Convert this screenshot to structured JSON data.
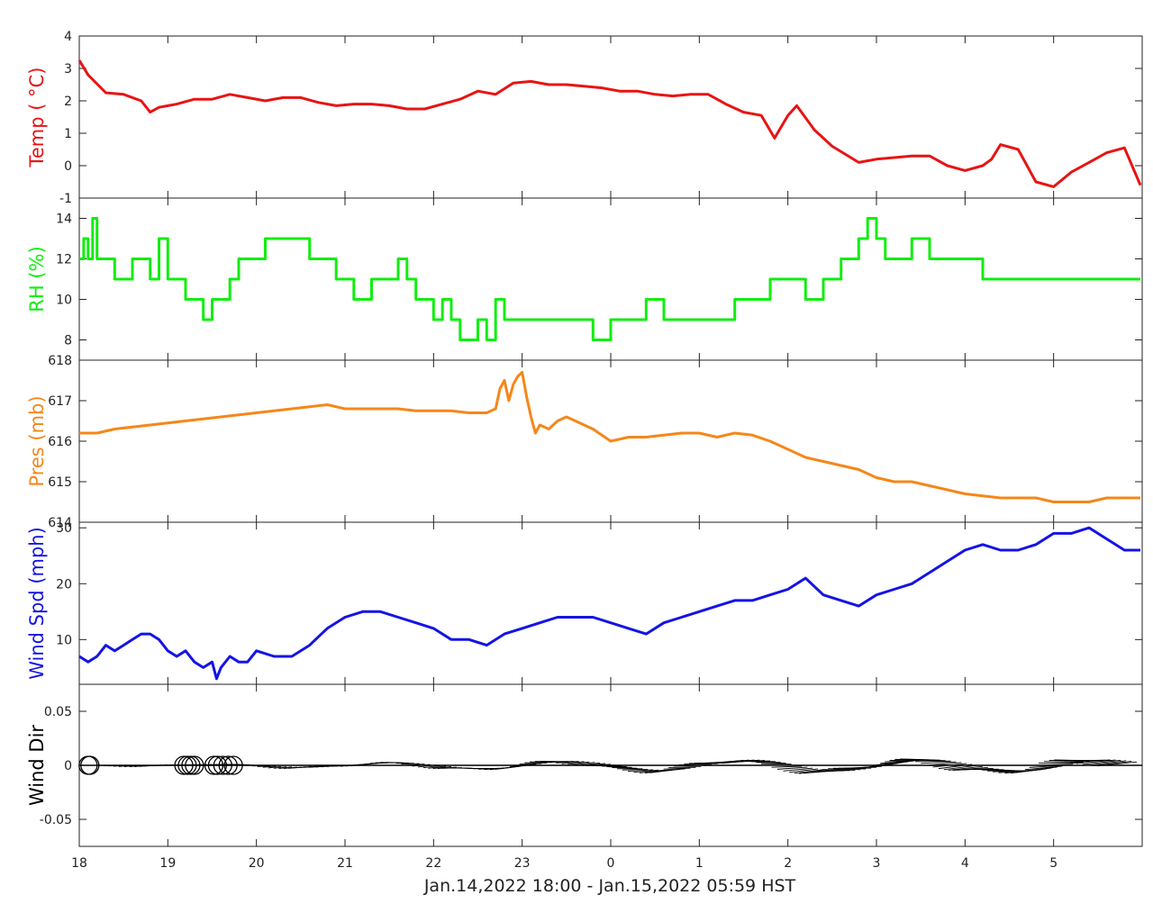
{
  "figure": {
    "xlabel": "Jan.14,2022 18:00 - Jan.15,2022 05:59 HST",
    "x_ticks": [
      "18",
      "19",
      "20",
      "21",
      "22",
      "23",
      "0",
      "1",
      "2",
      "3",
      "4",
      "5"
    ]
  },
  "chart_data": [
    {
      "type": "line",
      "ylabel": "Temp ( °C)",
      "color": "#e81414",
      "ylim": [
        -1,
        4
      ],
      "y_ticks": [
        "4",
        "3",
        "2",
        "1",
        "0",
        "-1"
      ],
      "x": [
        0,
        0.1,
        0.3,
        0.5,
        0.7,
        0.8,
        0.9,
        1.1,
        1.3,
        1.5,
        1.7,
        1.9,
        2.1,
        2.3,
        2.5,
        2.7,
        2.9,
        3.1,
        3.3,
        3.5,
        3.7,
        3.9,
        4.1,
        4.3,
        4.5,
        4.7,
        4.9,
        5.1,
        5.3,
        5.5,
        5.7,
        5.9,
        6.1,
        6.3,
        6.5,
        6.7,
        6.9,
        7.1,
        7.3,
        7.5,
        7.7,
        7.85,
        8.0,
        8.1,
        8.3,
        8.5,
        8.8,
        9.0,
        9.2,
        9.4,
        9.6,
        9.8,
        10.0,
        10.2,
        10.3,
        10.4,
        10.6,
        10.8,
        11.0,
        11.2,
        11.4,
        11.6,
        11.8,
        11.98
      ],
      "y": [
        3.25,
        2.8,
        2.25,
        2.2,
        2.0,
        1.65,
        1.8,
        1.9,
        2.05,
        2.05,
        2.2,
        2.1,
        2.0,
        2.1,
        2.1,
        1.95,
        1.85,
        1.9,
        1.9,
        1.85,
        1.75,
        1.75,
        1.9,
        2.05,
        2.3,
        2.2,
        2.55,
        2.6,
        2.5,
        2.5,
        2.45,
        2.4,
        2.3,
        2.3,
        2.2,
        2.15,
        2.2,
        2.2,
        1.9,
        1.65,
        1.55,
        0.85,
        1.55,
        1.85,
        1.1,
        0.6,
        0.1,
        0.2,
        0.25,
        0.3,
        0.3,
        0.0,
        -0.15,
        0.0,
        0.2,
        0.65,
        0.5,
        -0.5,
        -0.65,
        -0.2,
        0.1,
        0.4,
        0.55,
        -0.6
      ]
    },
    {
      "type": "line",
      "step": true,
      "ylabel": "RH (%)",
      "color": "#10ee10",
      "ylim": [
        7,
        15
      ],
      "y_ticks": [
        "14",
        "12",
        "10",
        "8"
      ],
      "x": [
        0,
        0.05,
        0.1,
        0.15,
        0.2,
        0.3,
        0.4,
        0.5,
        0.6,
        0.7,
        0.8,
        0.9,
        1.0,
        1.1,
        1.2,
        1.3,
        1.4,
        1.5,
        1.6,
        1.7,
        1.8,
        1.9,
        2.0,
        2.1,
        2.2,
        2.3,
        2.4,
        2.5,
        2.6,
        2.7,
        2.8,
        2.9,
        3.0,
        3.1,
        3.2,
        3.3,
        3.4,
        3.5,
        3.6,
        3.7,
        3.8,
        3.9,
        4.0,
        4.1,
        4.2,
        4.3,
        4.4,
        4.5,
        4.6,
        4.7,
        4.8,
        4.9,
        5.0,
        5.2,
        5.4,
        5.6,
        5.8,
        6.0,
        6.2,
        6.4,
        6.6,
        6.8,
        7.0,
        7.2,
        7.4,
        7.6,
        7.8,
        8.0,
        8.2,
        8.4,
        8.6,
        8.8,
        8.9,
        9.0,
        9.1,
        9.2,
        9.4,
        9.6,
        9.8,
        10.0,
        10.2,
        10.4,
        10.6,
        10.8,
        11.0,
        11.2,
        11.4,
        11.6,
        11.8,
        11.98
      ],
      "y": [
        12,
        13,
        12,
        14,
        12,
        12,
        11,
        11,
        12,
        12,
        11,
        13,
        11,
        11,
        10,
        10,
        9,
        10,
        10,
        11,
        12,
        12,
        12,
        13,
        13,
        13,
        13,
        13,
        12,
        12,
        12,
        11,
        11,
        10,
        10,
        11,
        11,
        11,
        12,
        11,
        10,
        10,
        9,
        10,
        9,
        8,
        8,
        9,
        8,
        10,
        9,
        9,
        9,
        9,
        9,
        9,
        8,
        9,
        9,
        10,
        9,
        9,
        9,
        9,
        10,
        10,
        11,
        11,
        10,
        11,
        12,
        13,
        14,
        13,
        12,
        12,
        13,
        12,
        12,
        12,
        11,
        11,
        11,
        11,
        11,
        11,
        11,
        11,
        11,
        11
      ]
    },
    {
      "type": "line",
      "ylabel": "Pres (mb)",
      "color": "#f5871a",
      "ylim": [
        614,
        618
      ],
      "y_ticks": [
        "618",
        "617",
        "616",
        "615",
        "614"
      ],
      "x": [
        0,
        0.2,
        0.4,
        0.6,
        0.8,
        1.0,
        1.2,
        1.4,
        1.6,
        1.8,
        2.0,
        2.2,
        2.4,
        2.6,
        2.8,
        3.0,
        3.2,
        3.4,
        3.6,
        3.8,
        4.0,
        4.2,
        4.4,
        4.6,
        4.7,
        4.75,
        4.8,
        4.85,
        4.9,
        4.95,
        5.0,
        5.05,
        5.1,
        5.15,
        5.2,
        5.3,
        5.4,
        5.5,
        5.6,
        5.7,
        5.8,
        6.0,
        6.2,
        6.4,
        6.6,
        6.8,
        7.0,
        7.2,
        7.4,
        7.6,
        7.8,
        8.0,
        8.2,
        8.4,
        8.6,
        8.8,
        9.0,
        9.2,
        9.4,
        9.6,
        9.8,
        10.0,
        10.2,
        10.4,
        10.6,
        10.8,
        11.0,
        11.2,
        11.4,
        11.6,
        11.8,
        11.98
      ],
      "y": [
        616.2,
        616.2,
        616.3,
        616.35,
        616.4,
        616.45,
        616.5,
        616.55,
        616.6,
        616.65,
        616.7,
        616.75,
        616.8,
        616.85,
        616.9,
        616.8,
        616.8,
        616.8,
        616.8,
        616.75,
        616.75,
        616.75,
        616.7,
        616.7,
        616.8,
        617.3,
        617.5,
        617.0,
        617.4,
        617.6,
        617.7,
        617.1,
        616.6,
        616.2,
        616.4,
        616.3,
        616.5,
        616.6,
        616.5,
        616.4,
        616.3,
        616.0,
        616.1,
        616.1,
        616.15,
        616.2,
        616.2,
        616.1,
        616.2,
        616.15,
        616.0,
        615.8,
        615.6,
        615.5,
        615.4,
        615.3,
        615.1,
        615.0,
        615.0,
        614.9,
        614.8,
        614.7,
        614.65,
        614.6,
        614.6,
        614.6,
        614.5,
        614.5,
        614.5,
        614.6,
        614.6,
        614.6
      ]
    },
    {
      "type": "line",
      "ylabel": "Wind Spd (mph)",
      "color": "#1414e6",
      "ylim": [
        2,
        31
      ],
      "y_ticks": [
        "30",
        "20",
        "10"
      ],
      "x": [
        0,
        0.1,
        0.2,
        0.3,
        0.4,
        0.5,
        0.6,
        0.7,
        0.8,
        0.9,
        1.0,
        1.1,
        1.2,
        1.3,
        1.4,
        1.5,
        1.55,
        1.6,
        1.7,
        1.8,
        1.9,
        2.0,
        2.2,
        2.4,
        2.6,
        2.8,
        3.0,
        3.2,
        3.4,
        3.6,
        3.8,
        4.0,
        4.2,
        4.4,
        4.6,
        4.8,
        5.0,
        5.2,
        5.4,
        5.6,
        5.8,
        6.0,
        6.2,
        6.4,
        6.6,
        6.8,
        7.0,
        7.2,
        7.4,
        7.6,
        7.8,
        8.0,
        8.2,
        8.4,
        8.6,
        8.8,
        9.0,
        9.2,
        9.4,
        9.6,
        9.8,
        10.0,
        10.2,
        10.4,
        10.6,
        10.8,
        11.0,
        11.2,
        11.4,
        11.6,
        11.8,
        11.98
      ],
      "y": [
        7,
        6,
        7,
        9,
        8,
        9,
        10,
        11,
        11,
        10,
        8,
        7,
        8,
        6,
        5,
        6,
        3,
        5,
        7,
        6,
        6,
        8,
        7,
        7,
        9,
        12,
        14,
        15,
        15,
        14,
        13,
        12,
        10,
        10,
        9,
        11,
        12,
        13,
        14,
        14,
        14,
        13,
        12,
        11,
        13,
        14,
        15,
        16,
        17,
        17,
        18,
        19,
        21,
        18,
        17,
        16,
        18,
        19,
        20,
        22,
        24,
        26,
        27,
        26,
        26,
        27,
        29,
        29,
        30,
        28,
        26,
        26
      ]
    },
    {
      "type": "quiver",
      "ylabel": "Wind Dir",
      "color": "#000000",
      "ylim": [
        -0.075,
        0.075
      ],
      "y_ticks": [
        "0.05",
        "0",
        "-0.05"
      ]
    }
  ]
}
